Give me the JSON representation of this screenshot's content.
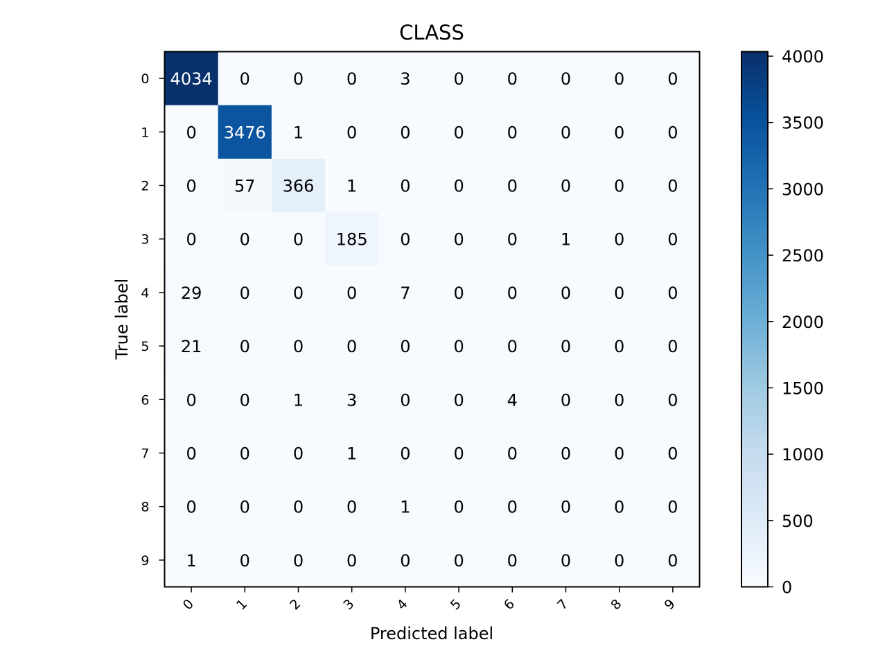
{
  "chart_data": {
    "type": "heatmap",
    "title": "CLASS",
    "xlabel": "Predicted label",
    "ylabel": "True label",
    "x_categories": [
      "0",
      "1",
      "2",
      "3",
      "4",
      "5",
      "6",
      "7",
      "8",
      "9"
    ],
    "y_categories": [
      "0",
      "1",
      "2",
      "3",
      "4",
      "5",
      "6",
      "7",
      "8",
      "9"
    ],
    "matrix": [
      [
        4034,
        0,
        0,
        0,
        3,
        0,
        0,
        0,
        0,
        0
      ],
      [
        0,
        3476,
        1,
        0,
        0,
        0,
        0,
        0,
        0,
        0
      ],
      [
        0,
        57,
        366,
        1,
        0,
        0,
        0,
        0,
        0,
        0
      ],
      [
        0,
        0,
        0,
        185,
        0,
        0,
        0,
        1,
        0,
        0
      ],
      [
        29,
        0,
        0,
        0,
        7,
        0,
        0,
        0,
        0,
        0
      ],
      [
        21,
        0,
        0,
        0,
        0,
        0,
        0,
        0,
        0,
        0
      ],
      [
        0,
        0,
        1,
        3,
        0,
        0,
        4,
        0,
        0,
        0
      ],
      [
        0,
        0,
        0,
        1,
        0,
        0,
        0,
        0,
        0,
        0
      ],
      [
        0,
        0,
        0,
        0,
        1,
        0,
        0,
        0,
        0,
        0
      ],
      [
        1,
        0,
        0,
        0,
        0,
        0,
        0,
        0,
        0,
        0
      ]
    ],
    "colormap": "Blues",
    "colorbar": {
      "range": [
        0,
        4034
      ],
      "ticks": [
        0,
        500,
        1000,
        1500,
        2000,
        2500,
        3000,
        3500,
        4000
      ]
    },
    "grid": false,
    "x_tick_rotation_deg": 45
  }
}
